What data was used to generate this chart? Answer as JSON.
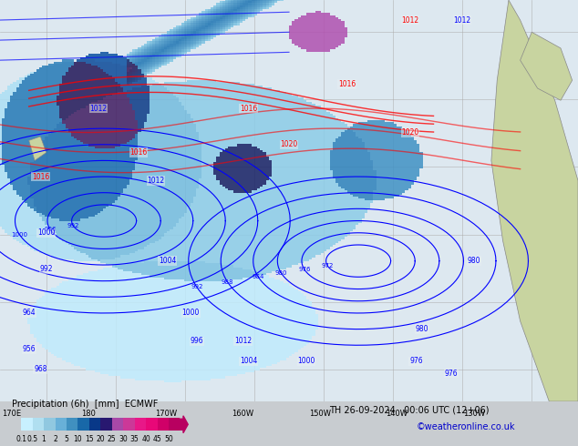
{
  "title_line1": "Precipitation (6h) [mm] ECMWF",
  "title_line2": "TH 26-09-2024 00:06 UTC (12+06)",
  "watermark": "©weatheronline.co.uk",
  "colorbar_levels": [
    0.1,
    0.5,
    1,
    2,
    5,
    10,
    15,
    20,
    25,
    30,
    35,
    40,
    45,
    50
  ],
  "colorbar_colors": [
    "#c8f0ff",
    "#a0d8f0",
    "#78c0e0",
    "#50a8d0",
    "#2890c0",
    "#1060a0",
    "#083880",
    "#301860",
    "#c870c0",
    "#e050b0",
    "#f030a0",
    "#f01890",
    "#e00080",
    "#c00070"
  ],
  "bg_color": "#d0d8e0",
  "map_bg": "#e8eef2",
  "fig_width": 6.34,
  "fig_height": 4.9,
  "dpi": 100
}
